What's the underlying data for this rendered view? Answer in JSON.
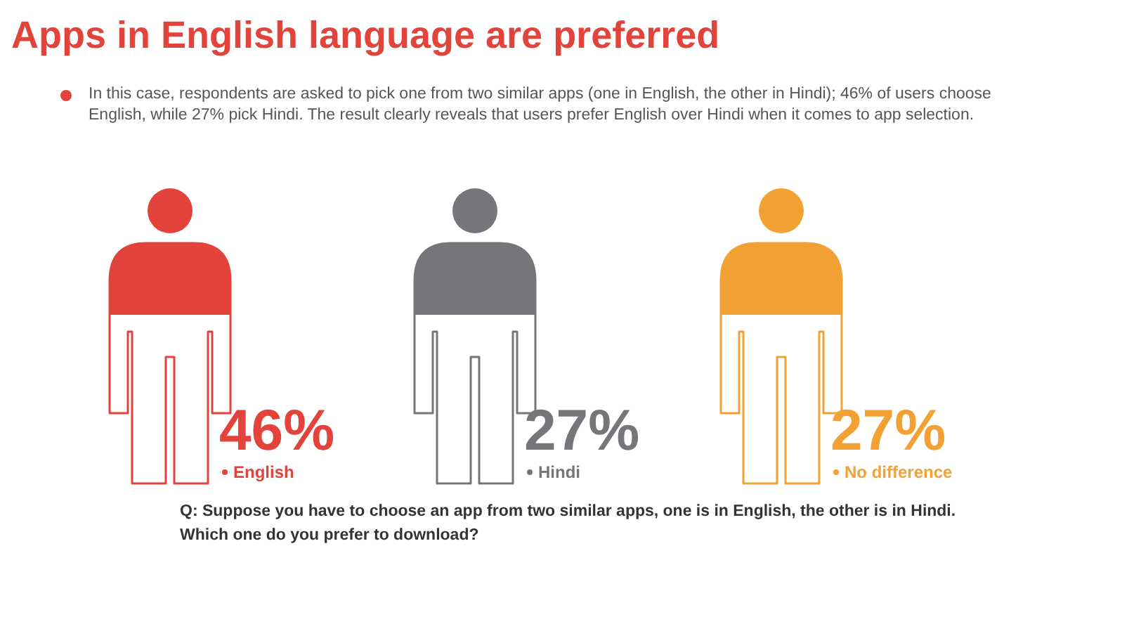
{
  "chart_data": {
    "type": "other",
    "title": "Apps in English language are preferred",
    "annotations": [
      "In this case, respondents are asked to pick one from two similar apps (one in English, the other in Hindi); 46% of users choose English, while 27% pick Hindi. The result clearly reveals that users prefer English over Hindi when it comes to app selection.",
      "Q: Suppose you have to choose an app from two similar apps, one is in English, the other is in Hindi. Which one do you prefer to download?"
    ],
    "categories": [
      "English",
      "Hindi",
      "No difference"
    ],
    "values": [
      46,
      27,
      27
    ],
    "value_labels": [
      "46%",
      "27%",
      "27%"
    ],
    "data_labels": true,
    "colors": [
      "#e2433b",
      "#76767a",
      "#f2a134"
    ]
  }
}
